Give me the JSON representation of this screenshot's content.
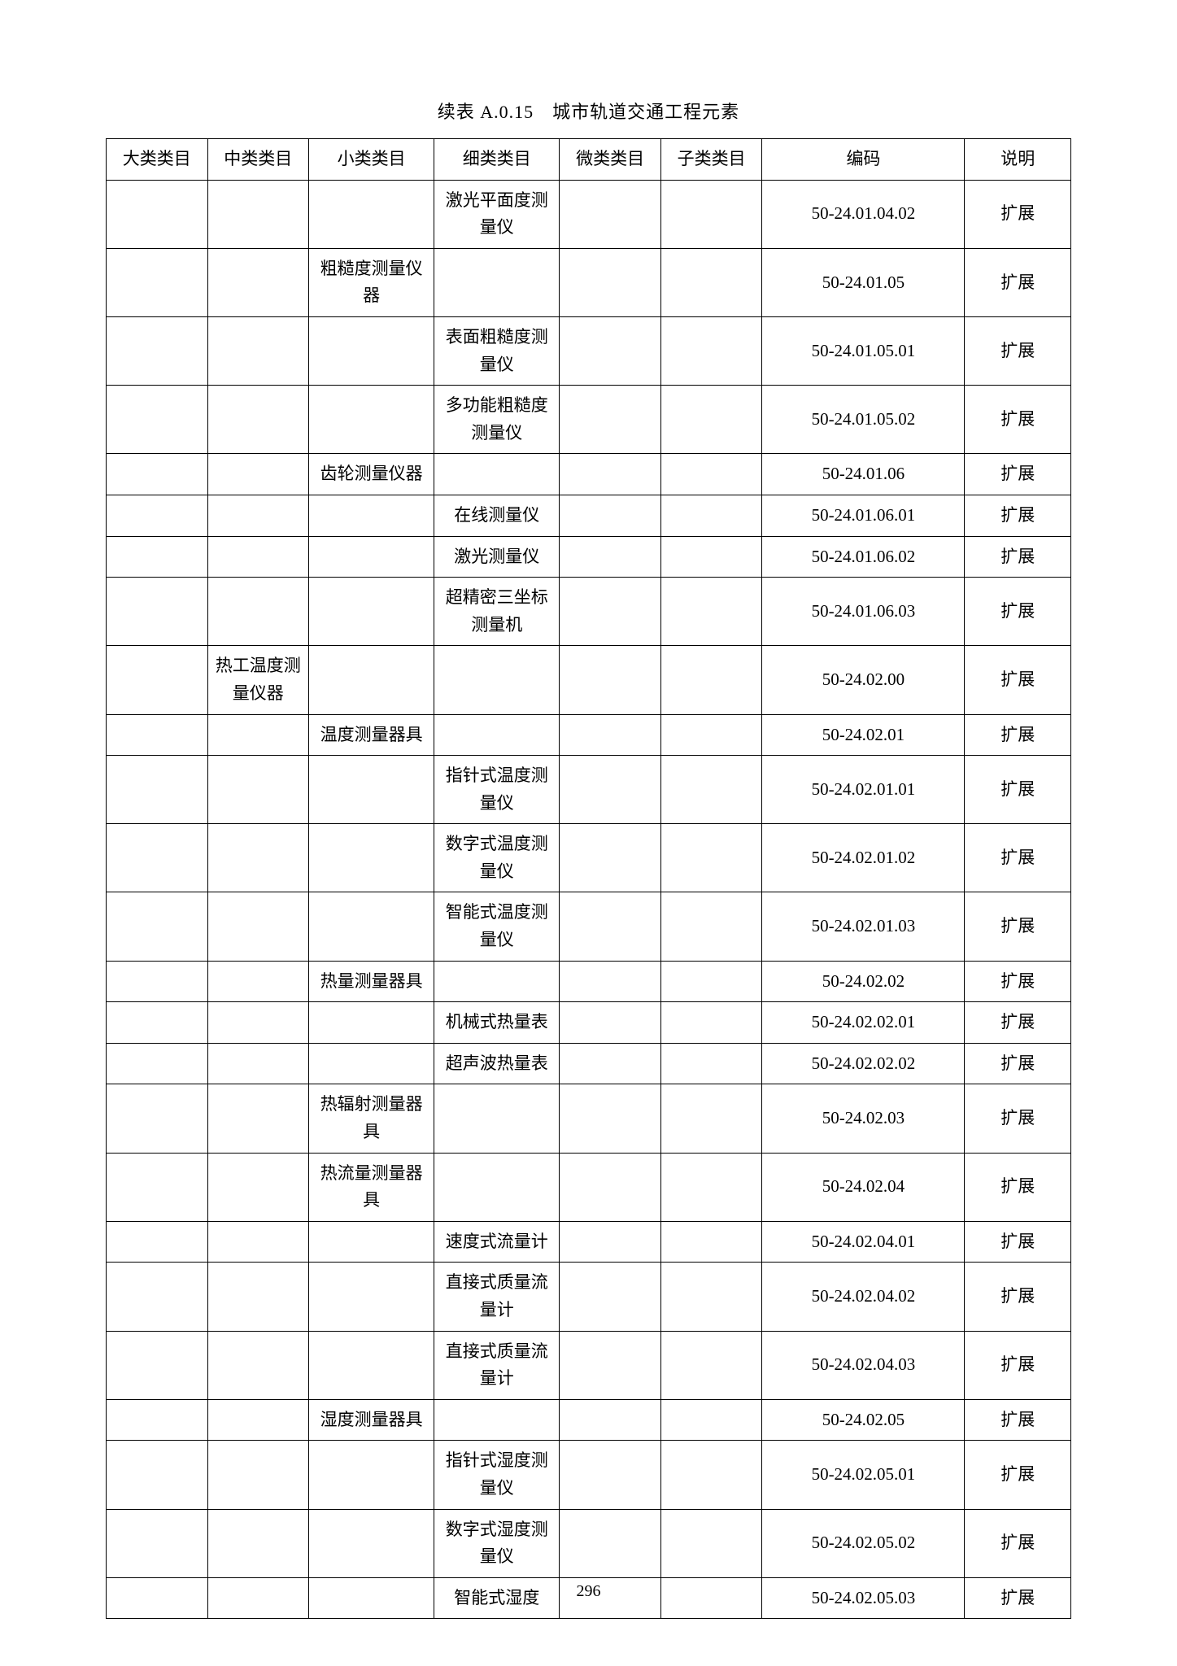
{
  "title": "续表 A.0.15　城市轨道交通工程元素",
  "pageNumber": "296",
  "table": {
    "headers": [
      "大类类目",
      "中类类目",
      "小类类目",
      "细类类目",
      "微类类目",
      "子类类目",
      "编码",
      "说明"
    ],
    "columnWidths": [
      "10.5%",
      "10.5%",
      "13%",
      "13%",
      "10.5%",
      "10.5%",
      "21%",
      "11%"
    ],
    "borderColor": "#000000",
    "backgroundColor": "#ffffff",
    "fontSize": 21,
    "rows": [
      {
        "c1": "",
        "c2": "",
        "c3": "",
        "c4": "激光平面度测量仪",
        "c5": "",
        "c6": "",
        "c7": "50-24.01.04.02",
        "c8": "扩展"
      },
      {
        "c1": "",
        "c2": "",
        "c3": "粗糙度测量仪器",
        "c4": "",
        "c5": "",
        "c6": "",
        "c7": "50-24.01.05",
        "c8": "扩展"
      },
      {
        "c1": "",
        "c2": "",
        "c3": "",
        "c4": "表面粗糙度测量仪",
        "c5": "",
        "c6": "",
        "c7": "50-24.01.05.01",
        "c8": "扩展"
      },
      {
        "c1": "",
        "c2": "",
        "c3": "",
        "c4": "多功能粗糙度测量仪",
        "c5": "",
        "c6": "",
        "c7": "50-24.01.05.02",
        "c8": "扩展"
      },
      {
        "c1": "",
        "c2": "",
        "c3": "齿轮测量仪器",
        "c4": "",
        "c5": "",
        "c6": "",
        "c7": "50-24.01.06",
        "c8": "扩展"
      },
      {
        "c1": "",
        "c2": "",
        "c3": "",
        "c4": "在线测量仪",
        "c5": "",
        "c6": "",
        "c7": "50-24.01.06.01",
        "c8": "扩展"
      },
      {
        "c1": "",
        "c2": "",
        "c3": "",
        "c4": "激光测量仪",
        "c5": "",
        "c6": "",
        "c7": "50-24.01.06.02",
        "c8": "扩展"
      },
      {
        "c1": "",
        "c2": "",
        "c3": "",
        "c4": "超精密三坐标测量机",
        "c5": "",
        "c6": "",
        "c7": "50-24.01.06.03",
        "c8": "扩展"
      },
      {
        "c1": "",
        "c2": "热工温度测量仪器",
        "c3": "",
        "c4": "",
        "c5": "",
        "c6": "",
        "c7": "50-24.02.00",
        "c8": "扩展"
      },
      {
        "c1": "",
        "c2": "",
        "c3": "温度测量器具",
        "c4": "",
        "c5": "",
        "c6": "",
        "c7": "50-24.02.01",
        "c8": "扩展"
      },
      {
        "c1": "",
        "c2": "",
        "c3": "",
        "c4": "指针式温度测量仪",
        "c5": "",
        "c6": "",
        "c7": "50-24.02.01.01",
        "c8": "扩展"
      },
      {
        "c1": "",
        "c2": "",
        "c3": "",
        "c4": "数字式温度测量仪",
        "c5": "",
        "c6": "",
        "c7": "50-24.02.01.02",
        "c8": "扩展"
      },
      {
        "c1": "",
        "c2": "",
        "c3": "",
        "c4": "智能式温度测量仪",
        "c5": "",
        "c6": "",
        "c7": "50-24.02.01.03",
        "c8": "扩展"
      },
      {
        "c1": "",
        "c2": "",
        "c3": "热量测量器具",
        "c4": "",
        "c5": "",
        "c6": "",
        "c7": "50-24.02.02",
        "c8": "扩展"
      },
      {
        "c1": "",
        "c2": "",
        "c3": "",
        "c4": "机械式热量表",
        "c5": "",
        "c6": "",
        "c7": "50-24.02.02.01",
        "c8": "扩展"
      },
      {
        "c1": "",
        "c2": "",
        "c3": "",
        "c4": "超声波热量表",
        "c5": "",
        "c6": "",
        "c7": "50-24.02.02.02",
        "c8": "扩展"
      },
      {
        "c1": "",
        "c2": "",
        "c3": "热辐射测量器具",
        "c4": "",
        "c5": "",
        "c6": "",
        "c7": "50-24.02.03",
        "c8": "扩展"
      },
      {
        "c1": "",
        "c2": "",
        "c3": "热流量测量器具",
        "c4": "",
        "c5": "",
        "c6": "",
        "c7": "50-24.02.04",
        "c8": "扩展"
      },
      {
        "c1": "",
        "c2": "",
        "c3": "",
        "c4": "速度式流量计",
        "c5": "",
        "c6": "",
        "c7": "50-24.02.04.01",
        "c8": "扩展"
      },
      {
        "c1": "",
        "c2": "",
        "c3": "",
        "c4": "直接式质量流量计",
        "c5": "",
        "c6": "",
        "c7": "50-24.02.04.02",
        "c8": "扩展"
      },
      {
        "c1": "",
        "c2": "",
        "c3": "",
        "c4": "直接式质量流量计",
        "c5": "",
        "c6": "",
        "c7": "50-24.02.04.03",
        "c8": "扩展"
      },
      {
        "c1": "",
        "c2": "",
        "c3": "湿度测量器具",
        "c4": "",
        "c5": "",
        "c6": "",
        "c7": "50-24.02.05",
        "c8": "扩展"
      },
      {
        "c1": "",
        "c2": "",
        "c3": "",
        "c4": "指针式湿度测量仪",
        "c5": "",
        "c6": "",
        "c7": "50-24.02.05.01",
        "c8": "扩展"
      },
      {
        "c1": "",
        "c2": "",
        "c3": "",
        "c4": "数字式湿度测量仪",
        "c5": "",
        "c6": "",
        "c7": "50-24.02.05.02",
        "c8": "扩展"
      },
      {
        "c1": "",
        "c2": "",
        "c3": "",
        "c4": "智能式湿度",
        "c5": "",
        "c6": "",
        "c7": "50-24.02.05.03",
        "c8": "扩展"
      }
    ]
  }
}
